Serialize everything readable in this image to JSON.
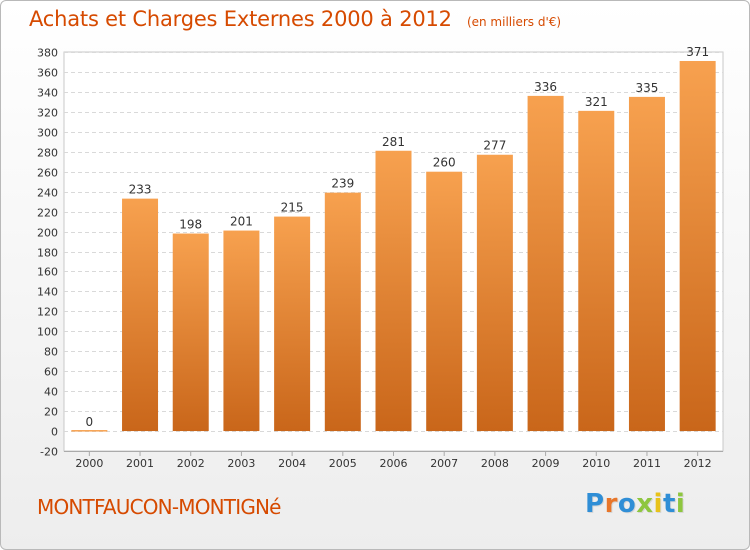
{
  "header": {
    "title": "Achats et Charges Externes 2000 à 2012",
    "unit": "(en milliers d'€)"
  },
  "footer": {
    "commune": "MONTFAUCON-MONTIGNé",
    "logo": {
      "text": "Proxiti",
      "letter_colors": [
        "#2f8ed6",
        "#e8762a",
        "#2f8ed6",
        "#8ec63f",
        "#e8c21a",
        "#2f8ed6",
        "#8ec63f"
      ]
    }
  },
  "chart_data": {
    "type": "bar",
    "title": "Achats et Charges Externes 2000 à 2012",
    "subtitle": "(en milliers d'€)",
    "xlabel": "",
    "ylabel": "",
    "categories": [
      "2000",
      "2001",
      "2002",
      "2003",
      "2004",
      "2005",
      "2006",
      "2007",
      "2008",
      "2009",
      "2010",
      "2011",
      "2012"
    ],
    "values": [
      0,
      233,
      198,
      201,
      215,
      239,
      281,
      260,
      277,
      336,
      321,
      335,
      371
    ],
    "data_labels": [
      "0",
      "233",
      "198",
      "201",
      "215",
      "239",
      "281",
      "260",
      "277",
      "336",
      "321",
      "335",
      "371"
    ],
    "ylim": [
      -20,
      380
    ],
    "yticks": [
      -20,
      0,
      20,
      40,
      60,
      80,
      100,
      120,
      140,
      160,
      180,
      200,
      220,
      240,
      260,
      280,
      300,
      320,
      340,
      360,
      380
    ],
    "grid": true,
    "legend": "none",
    "colors": {
      "bar_light": "#f7a14f",
      "bar_dark": "#c9661a",
      "label": "#333333",
      "grid": "#d9d9d9"
    }
  }
}
